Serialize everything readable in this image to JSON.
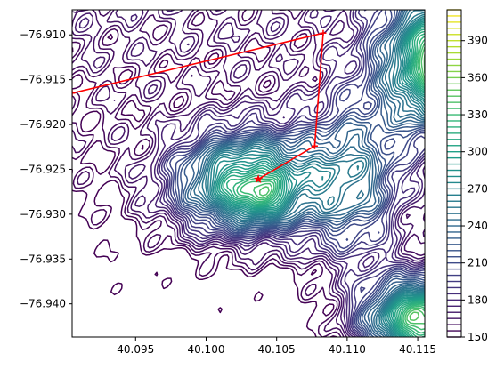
{
  "chart_data": {
    "type": "contour",
    "title": "",
    "xlabel": "",
    "ylabel": "",
    "xlim": [
      40.0905,
      40.1155
    ],
    "ylim": [
      -76.9437,
      -76.9072
    ],
    "x_ticks": [
      "40.095",
      "40.100",
      "40.105",
      "40.110",
      "40.115"
    ],
    "x_tick_values": [
      40.095,
      40.1,
      40.105,
      40.11,
      40.115
    ],
    "y_ticks": [
      "−76.910",
      "−76.915",
      "−76.920",
      "−76.925",
      "−76.930",
      "−76.935",
      "−76.940"
    ],
    "y_tick_values": [
      -76.91,
      -76.915,
      -76.92,
      -76.925,
      -76.93,
      -76.935,
      -76.94
    ],
    "colorbar": {
      "colormap": "viridis",
      "range": [
        150,
        415
      ],
      "ticks": [
        "150",
        "180",
        "210",
        "240",
        "270",
        "300",
        "330",
        "360",
        "390"
      ],
      "tick_values": [
        150,
        180,
        210,
        240,
        270,
        300,
        330,
        360,
        390
      ],
      "level_step": 5
    },
    "peaks": [
      {
        "x": 40.1045,
        "y": -76.9265,
        "value": 400
      },
      {
        "x": 40.1142,
        "y": -76.914,
        "value": 380
      },
      {
        "x": 40.114,
        "y": -76.9405,
        "value": 355
      }
    ],
    "path": {
      "color": "#ff0000",
      "points": [
        {
          "x": 40.0905,
          "y": -76.9165
        },
        {
          "x": 40.1083,
          "y": -76.9098
        },
        {
          "x": 40.1077,
          "y": -76.9224
        },
        {
          "x": 40.1037,
          "y": -76.9261
        }
      ]
    }
  }
}
